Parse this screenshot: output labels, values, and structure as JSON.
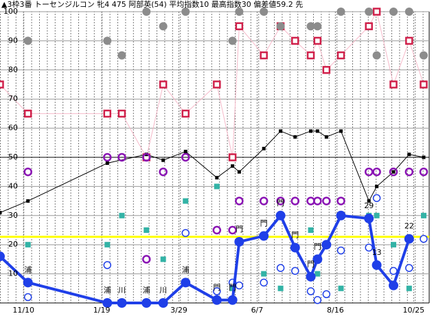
{
  "chart_data": {
    "type": "line",
    "title": "▲3枠3番 トーセンジルコン 牝4 475 阿部英(54) 平均指数10 最高指数30 偏差値59.2 先",
    "xlim": [
      -21,
      366
    ],
    "ylim": [
      0,
      100
    ],
    "xticks": [
      {
        "value": 0,
        "label": "11/10"
      },
      {
        "value": 70,
        "label": "1/19"
      },
      {
        "value": 139,
        "label": "3/29"
      },
      {
        "value": 209,
        "label": "6/7"
      },
      {
        "value": 279,
        "label": "8/16"
      },
      {
        "value": 349,
        "label": "10/25"
      }
    ],
    "yticks": [
      10,
      20,
      30,
      40,
      50,
      60,
      70,
      80,
      90,
      100
    ],
    "grid": true,
    "reference_lines": [
      {
        "value": 50,
        "color": "#000000"
      },
      {
        "value": 22.7,
        "color": "#ffff00"
      }
    ],
    "series": [
      {
        "marker": "square-open",
        "color": "#d0204a",
        "line_color": "#f6b9c9",
        "line": true,
        "x": [
          -21,
          4,
          75,
          88,
          110,
          125,
          145,
          173,
          187,
          193,
          215,
          230,
          243,
          257,
          263,
          271,
          284,
          309,
          316,
          331,
          345,
          358
        ],
        "values": [
          75,
          65,
          65,
          65,
          50,
          75,
          65,
          75,
          50,
          95,
          85,
          95,
          90,
          85,
          90,
          80,
          85,
          95,
          100,
          75,
          90,
          75
        ]
      },
      {
        "marker": "square-filled-small",
        "color": "#000000",
        "line_color": "#000000",
        "line": true,
        "x": [
          -21,
          4,
          75,
          110,
          125,
          145,
          173,
          187,
          193,
          215,
          230,
          243,
          257,
          263,
          271,
          284,
          309,
          316,
          331,
          345,
          358
        ],
        "values": [
          31,
          35,
          48,
          51,
          49,
          52,
          43,
          47,
          45,
          53,
          59,
          57,
          59,
          59,
          57,
          59,
          35,
          40,
          45,
          51,
          50
        ]
      },
      {
        "marker": "circle-filled",
        "color": "#8c8c8c",
        "line": false,
        "x": [
          4,
          75,
          88,
          110,
          125,
          145,
          187,
          193,
          215,
          230,
          257,
          263,
          284,
          309,
          316,
          331,
          345,
          358
        ],
        "values": [
          90,
          90,
          85,
          100,
          95,
          100,
          90,
          100,
          100,
          95,
          95,
          95,
          100,
          100,
          85,
          100,
          100,
          85
        ]
      },
      {
        "marker": "circle-open",
        "color": "#8a14b4",
        "line": false,
        "x": [
          4,
          75,
          88,
          110,
          110,
          125,
          145,
          173,
          187,
          193,
          215,
          230,
          243,
          257,
          263,
          271,
          284,
          309,
          316,
          331,
          345,
          358
        ],
        "values": [
          45,
          50,
          50,
          50,
          15,
          45,
          50,
          25,
          25,
          35,
          35,
          35,
          35,
          35,
          35,
          35,
          35,
          45,
          45,
          45,
          45,
          45
        ]
      },
      {
        "marker": "square-filled",
        "color": "#33b3a6",
        "line": false,
        "x": [
          4,
          75,
          88,
          110,
          125,
          145,
          173,
          187,
          215,
          230,
          257,
          263,
          271,
          284,
          309,
          316,
          331,
          345,
          358
        ],
        "values": [
          20,
          20,
          30,
          25,
          15,
          35,
          40,
          5,
          10,
          5,
          25,
          10,
          20,
          5,
          30,
          30,
          20,
          5,
          30
        ]
      },
      {
        "marker": "circle-open-thin",
        "color": "#1f3fe8",
        "line": false,
        "x": [
          4,
          75,
          145,
          173,
          187,
          193,
          215,
          230,
          243,
          257,
          263,
          271,
          284,
          309,
          316,
          331,
          345,
          358
        ],
        "values": [
          2,
          13,
          24,
          4,
          7,
          6,
          7,
          12,
          11,
          4,
          1,
          3,
          18,
          19,
          36,
          11,
          12,
          22
        ]
      },
      {
        "marker": "dot-big",
        "color": "#1f3fe8",
        "line_color": "#1f3fe8",
        "line": true,
        "line_width": 4,
        "x": [
          -21,
          4,
          75,
          88,
          110,
          125,
          145,
          173,
          187,
          193,
          215,
          230,
          243,
          257,
          263,
          271,
          284,
          309,
          316,
          331,
          345
        ],
        "values": [
          16,
          7,
          0,
          0,
          0,
          0,
          7,
          1,
          1,
          21,
          23,
          30,
          19,
          9,
          15,
          20,
          30,
          29,
          13,
          6,
          22
        ],
        "annotations": [
          null,
          "浦",
          "浦",
          "川",
          "浦",
          "川",
          "浦",
          "門",
          "門",
          "門",
          "門",
          "門",
          "門",
          "門",
          "門",
          null,
          null,
          "29",
          "13",
          null,
          "22"
        ]
      }
    ]
  }
}
